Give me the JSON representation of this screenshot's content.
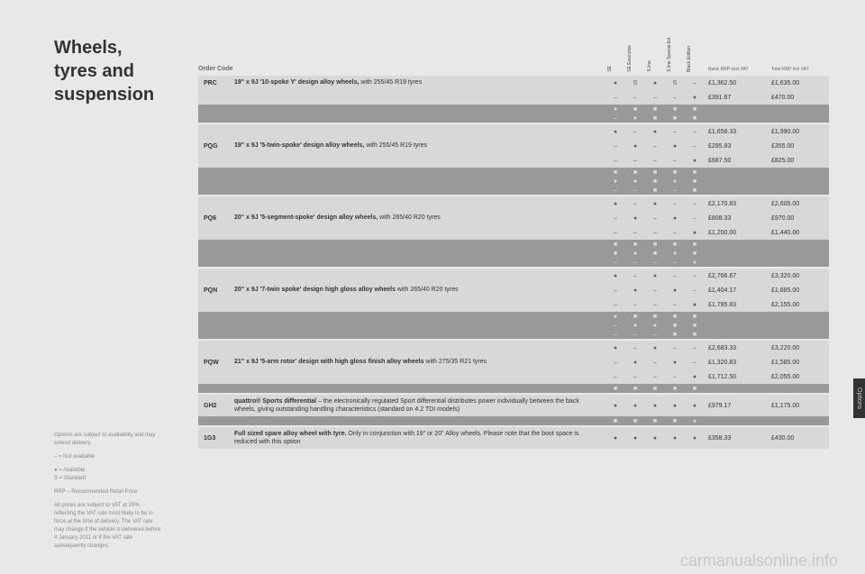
{
  "title_l1": "Wheels,",
  "title_l2": "tyres and",
  "title_l3": "suspension",
  "legend": {
    "avail_hdr": "Options are subject to availability and may extend delivery.",
    "na": "– = Not available",
    "av": "● = Available",
    "st": "S = Standard",
    "rrp": "RRP – Recommended Retail Price",
    "vat": "All prices are subject to VAT at 20% reflecting the VAT rate most likely to be in force at the time of delivery. The VAT rate may change if the vehicle is delivered before 4 January 2011 or if the VAT rate subsequently changes."
  },
  "header": {
    "ordercode": "Order Code",
    "cols": [
      "SE",
      "SE Executive",
      "S line",
      "S line Special Ed",
      "Black Edition"
    ],
    "price1": "Basic RRP excl VAT",
    "price2": "Total RRP incl VAT"
  },
  "rows": [
    {
      "code": "PRC",
      "desc": "<b>19\" x 9J '10-spoke Y' design alloy wheels,</b> with 255/45 R19 tyres",
      "bg": "alt",
      "lines": [
        {
          "m": [
            "●",
            "S",
            "●",
            "S",
            "–"
          ],
          "p1": "£1,362.50",
          "p2": "£1,635.00"
        },
        {
          "m": [
            "–",
            "–",
            "–",
            "–",
            "●"
          ],
          "p1": "£391.67",
          "p2": "£470.00"
        }
      ],
      "dark": [
        {
          "m": [
            "●",
            "■",
            "■",
            "■",
            "■"
          ]
        },
        {
          "m": [
            "–",
            "●",
            "■",
            "■",
            "■"
          ]
        }
      ]
    },
    {
      "code": "PQG",
      "desc": "<b>19\" x 9J '5-twin-spoke' design alloy wheels,</b> with 255/45 R19 tyres",
      "bg": "alt",
      "lines": [
        {
          "m": [
            "●",
            "–",
            "●",
            "–",
            "–"
          ],
          "p1": "£1,658.33",
          "p2": "£1,990.00"
        },
        {
          "m": [
            "–",
            "●",
            "–",
            "●",
            "–"
          ],
          "p1": "£295.83",
          "p2": "£355.00"
        },
        {
          "m": [
            "–",
            "–",
            "–",
            "–",
            "●"
          ],
          "p1": "£687.50",
          "p2": "£825.00"
        }
      ],
      "dark": [
        {
          "m": [
            "■",
            "■",
            "■",
            "■",
            "■"
          ]
        },
        {
          "m": [
            "●",
            "●",
            "■",
            "●",
            "■"
          ]
        },
        {
          "m": [
            "–",
            "–",
            "■",
            "–",
            "■"
          ]
        }
      ]
    },
    {
      "code": "PQ6",
      "desc": "<b>20\" x 9J '5-segment-spoke' design alloy wheels,</b> with 265/40 R20 tyres",
      "bg": "alt",
      "lines": [
        {
          "m": [
            "●",
            "–",
            "●",
            "–",
            "–"
          ],
          "p1": "£2,170.83",
          "p2": "£2,605.00"
        },
        {
          "m": [
            "–",
            "●",
            "–",
            "●",
            "–"
          ],
          "p1": "£808.33",
          "p2": "£970.00"
        },
        {
          "m": [
            "–",
            "–",
            "–",
            "–",
            "●"
          ],
          "p1": "£1,200.00",
          "p2": "£1,440.00"
        }
      ],
      "dark": [
        {
          "m": [
            "■",
            "■",
            "■",
            "■",
            "■"
          ]
        },
        {
          "m": [
            "■",
            "●",
            "■",
            "●",
            "■"
          ]
        },
        {
          "m": [
            "–",
            "–",
            "–",
            "–",
            "●"
          ]
        }
      ]
    },
    {
      "code": "PQN",
      "desc": "<b>20\" x 9J '7-twin spoke' design high gloss alloy wheels</b> with 265/40 R20 tyres",
      "bg": "alt",
      "lines": [
        {
          "m": [
            "●",
            "–",
            "●",
            "–",
            "–"
          ],
          "p1": "£2,766.67",
          "p2": "£3,320.00"
        },
        {
          "m": [
            "–",
            "●",
            "–",
            "●",
            "–"
          ],
          "p1": "£1,404.17",
          "p2": "£1,685.00"
        },
        {
          "m": [
            "–",
            "–",
            "–",
            "–",
            "●"
          ],
          "p1": "£1,795.83",
          "p2": "£2,155.00"
        }
      ],
      "dark": [
        {
          "m": [
            "●",
            "■",
            "■",
            "■",
            "■"
          ]
        },
        {
          "m": [
            "–",
            "●",
            "●",
            "■",
            "■"
          ]
        },
        {
          "m": [
            "–",
            "–",
            "–",
            "■",
            "■"
          ]
        }
      ]
    },
    {
      "code": "PQW",
      "desc": "<b>21\" x 9J '5-arm rotor' design with high gloss finish alloy wheels</b> with 275/35 R21 tyres",
      "bg": "alt",
      "lines": [
        {
          "m": [
            "●",
            "–",
            "●",
            "–",
            "–"
          ],
          "p1": "£2,683.33",
          "p2": "£3,220.00"
        },
        {
          "m": [
            "–",
            "●",
            "–",
            "●",
            "–"
          ],
          "p1": "£1,320.83",
          "p2": "£1,585.00"
        },
        {
          "m": [
            "–",
            "–",
            "–",
            "–",
            "●"
          ],
          "p1": "£1,712.50",
          "p2": "£2,055.00"
        }
      ],
      "dark": [
        {
          "m": [
            "■",
            "■",
            "■",
            "■",
            "■"
          ]
        }
      ]
    },
    {
      "code": "GH2",
      "desc": "<b>quattro® Sports differential</b> – the electronically regulated Sport differential distributes power individually between the back wheels, giving outstanding handling characteristics (standard on 4.2 TDI models)",
      "bg": "alt",
      "lines": [
        {
          "m": [
            "●",
            "●",
            "●",
            "●",
            "●"
          ],
          "p1": "£979.17",
          "p2": "£1,175.00"
        }
      ],
      "dark": [
        {
          "m": [
            "■",
            "■",
            "■",
            "■",
            "●"
          ]
        }
      ]
    },
    {
      "code": "1G3",
      "desc": "<b>Full sized spare alloy wheel with tyre.</b> Only in conjunction with 19\" or 20\" Alloy wheels. Please note that the boot space is reduced with this option",
      "bg": "alt",
      "lines": [
        {
          "m": [
            "●",
            "●",
            "●",
            "●",
            "●"
          ],
          "p1": "£358.33",
          "p2": "£430.00"
        }
      ],
      "dark": []
    }
  ],
  "sidetab": "Options",
  "watermark": "carmanualsonline.info"
}
